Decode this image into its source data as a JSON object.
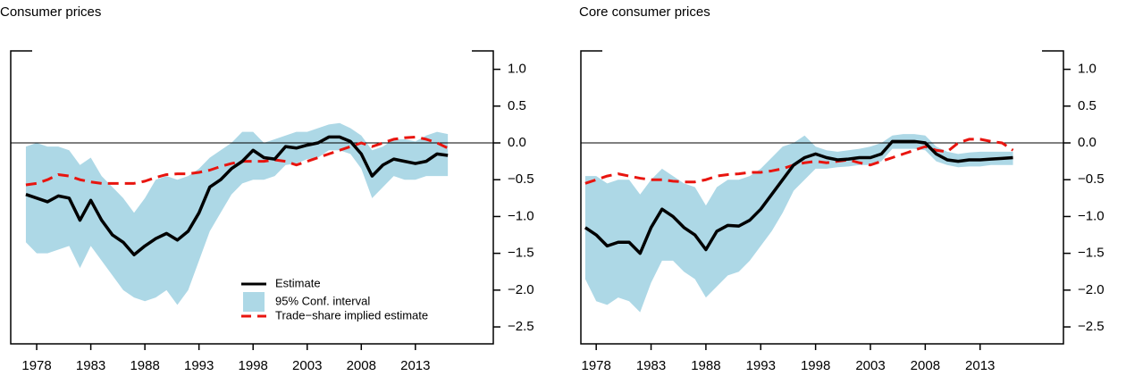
{
  "chart_data": [
    {
      "type": "line",
      "title": "Consumer prices",
      "legend": "bottom-right",
      "hline": 0,
      "x": [
        1977,
        1978,
        1979,
        1980,
        1981,
        1982,
        1983,
        1984,
        1985,
        1986,
        1987,
        1988,
        1989,
        1990,
        1991,
        1992,
        1993,
        1994,
        1995,
        1996,
        1997,
        1998,
        1999,
        2000,
        2001,
        2002,
        2003,
        2004,
        2005,
        2006,
        2007,
        2008,
        2009,
        2010,
        2011,
        2012,
        2013,
        2014,
        2015,
        2016
      ],
      "xlim": [
        1975.6,
        2020.2
      ],
      "xticks": [
        1978,
        1983,
        1988,
        1993,
        1998,
        2003,
        2008,
        2013
      ],
      "ylim": [
        -2.73,
        1.25
      ],
      "yticks": [
        {
          "value": 1,
          "label": "1.0"
        },
        {
          "value": 0.5,
          "label": "0.5"
        },
        {
          "value": 0,
          "label": "0.0"
        },
        {
          "value": -0.5,
          "label": "−0.5"
        },
        {
          "value": -1,
          "label": "−1.0"
        },
        {
          "value": -1.5,
          "label": "−1.5"
        },
        {
          "value": -2,
          "label": "−2.0"
        },
        {
          "value": -2.5,
          "label": "−2.5"
        }
      ],
      "band": {
        "name": "95% Conf. interval",
        "color": "#add8e6",
        "lower": [
          -1.35,
          -1.5,
          -1.5,
          -1.45,
          -1.4,
          -1.7,
          -1.4,
          -1.6,
          -1.8,
          -2.0,
          -2.1,
          -2.15,
          -2.1,
          -2.0,
          -2.2,
          -2.0,
          -1.6,
          -1.2,
          -0.95,
          -0.7,
          -0.55,
          -0.5,
          -0.5,
          -0.45,
          -0.3,
          -0.28,
          -0.22,
          -0.2,
          -0.1,
          -0.1,
          -0.15,
          -0.35,
          -0.75,
          -0.6,
          -0.45,
          -0.5,
          -0.5,
          -0.45,
          -0.45,
          -0.45
        ],
        "upper": [
          -0.05,
          0.0,
          -0.05,
          -0.05,
          -0.1,
          -0.3,
          -0.2,
          -0.45,
          -0.6,
          -0.75,
          -0.95,
          -0.75,
          -0.5,
          -0.45,
          -0.5,
          -0.45,
          -0.35,
          -0.2,
          -0.1,
          0.0,
          0.15,
          0.15,
          0.0,
          0.05,
          0.1,
          0.15,
          0.15,
          0.2,
          0.25,
          0.27,
          0.2,
          0.1,
          -0.1,
          -0.05,
          0.05,
          0.05,
          0.02,
          0.1,
          0.15,
          0.12
        ]
      },
      "series": [
        {
          "name": "Estimate",
          "color": "#000000",
          "style": "solid",
          "values": [
            -0.7,
            -0.75,
            -0.8,
            -0.72,
            -0.75,
            -1.05,
            -0.78,
            -1.05,
            -1.25,
            -1.35,
            -1.52,
            -1.4,
            -1.3,
            -1.23,
            -1.32,
            -1.2,
            -0.95,
            -0.6,
            -0.5,
            -0.35,
            -0.25,
            -0.1,
            -0.2,
            -0.22,
            -0.05,
            -0.07,
            -0.03,
            0.0,
            0.08,
            0.08,
            0.02,
            -0.15,
            -0.45,
            -0.3,
            -0.22,
            -0.25,
            -0.28,
            -0.25,
            -0.15,
            -0.17
          ]
        },
        {
          "name": "Trade−share implied estimate",
          "color": "#e8150f",
          "style": "dashed",
          "values": [
            -0.57,
            -0.55,
            -0.5,
            -0.43,
            -0.45,
            -0.5,
            -0.53,
            -0.55,
            -0.55,
            -0.55,
            -0.55,
            -0.52,
            -0.47,
            -0.43,
            -0.42,
            -0.42,
            -0.4,
            -0.37,
            -0.32,
            -0.28,
            -0.25,
            -0.25,
            -0.25,
            -0.23,
            -0.25,
            -0.3,
            -0.25,
            -0.2,
            -0.15,
            -0.1,
            -0.05,
            0.0,
            -0.05,
            0.0,
            0.05,
            0.07,
            0.08,
            0.05,
            0.0,
            -0.07
          ]
        }
      ]
    },
    {
      "type": "line",
      "title": "Core consumer prices",
      "legend": false,
      "hline": 0,
      "x": [
        1977,
        1978,
        1979,
        1980,
        1981,
        1982,
        1983,
        1984,
        1985,
        1986,
        1987,
        1988,
        1989,
        1990,
        1991,
        1992,
        1993,
        1994,
        1995,
        1996,
        1997,
        1998,
        1999,
        2000,
        2001,
        2002,
        2003,
        2004,
        2005,
        2006,
        2007,
        2008,
        2009,
        2010,
        2011,
        2012,
        2013,
        2014,
        2015,
        2016
      ],
      "xlim": [
        1976.6,
        2020.6
      ],
      "xticks": [
        1978,
        1983,
        1988,
        1993,
        1998,
        2003,
        2008,
        2013
      ],
      "ylim": [
        -2.73,
        1.25
      ],
      "yticks": [
        {
          "value": 1,
          "label": "1.0"
        },
        {
          "value": 0.5,
          "label": "0.5"
        },
        {
          "value": 0,
          "label": "0.0"
        },
        {
          "value": -0.5,
          "label": "−0.5"
        },
        {
          "value": -1,
          "label": "−1.0"
        },
        {
          "value": -1.5,
          "label": "−1.5"
        },
        {
          "value": -2,
          "label": "−2.0"
        },
        {
          "value": -2.5,
          "label": "−2.5"
        }
      ],
      "band": {
        "color": "#add8e6",
        "lower": [
          -1.85,
          -2.15,
          -2.2,
          -2.1,
          -2.15,
          -2.3,
          -1.9,
          -1.6,
          -1.6,
          -1.75,
          -1.85,
          -2.1,
          -1.95,
          -1.8,
          -1.75,
          -1.6,
          -1.4,
          -1.2,
          -0.95,
          -0.65,
          -0.5,
          -0.35,
          -0.35,
          -0.33,
          -0.32,
          -0.3,
          -0.3,
          -0.25,
          -0.08,
          -0.08,
          -0.08,
          -0.1,
          -0.25,
          -0.3,
          -0.33,
          -0.32,
          -0.32,
          -0.3,
          -0.3,
          -0.3
        ],
        "upper": [
          -0.45,
          -0.45,
          -0.55,
          -0.5,
          -0.5,
          -0.7,
          -0.5,
          -0.35,
          -0.45,
          -0.55,
          -0.6,
          -0.85,
          -0.6,
          -0.5,
          -0.5,
          -0.45,
          -0.35,
          -0.2,
          -0.05,
          0.0,
          0.1,
          -0.05,
          -0.1,
          -0.12,
          -0.1,
          -0.08,
          -0.05,
          0.0,
          0.1,
          0.12,
          0.12,
          0.1,
          -0.05,
          -0.12,
          -0.15,
          -0.13,
          -0.12,
          -0.12,
          -0.12,
          -0.12
        ]
      },
      "series": [
        {
          "color": "#000000",
          "style": "solid",
          "values": [
            -1.15,
            -1.25,
            -1.4,
            -1.35,
            -1.35,
            -1.5,
            -1.15,
            -0.9,
            -1.0,
            -1.15,
            -1.25,
            -1.45,
            -1.2,
            -1.12,
            -1.13,
            -1.05,
            -0.9,
            -0.7,
            -0.5,
            -0.3,
            -0.2,
            -0.15,
            -0.2,
            -0.23,
            -0.22,
            -0.2,
            -0.2,
            -0.15,
            0.02,
            0.02,
            0.02,
            0.0,
            -0.15,
            -0.23,
            -0.25,
            -0.23,
            -0.23,
            -0.22,
            -0.21,
            -0.2
          ]
        },
        {
          "color": "#e8150f",
          "style": "dashed",
          "values": [
            -0.55,
            -0.5,
            -0.45,
            -0.42,
            -0.45,
            -0.48,
            -0.5,
            -0.5,
            -0.52,
            -0.53,
            -0.53,
            -0.5,
            -0.45,
            -0.43,
            -0.42,
            -0.4,
            -0.4,
            -0.38,
            -0.35,
            -0.3,
            -0.27,
            -0.25,
            -0.27,
            -0.25,
            -0.23,
            -0.27,
            -0.3,
            -0.25,
            -0.2,
            -0.15,
            -0.1,
            -0.05,
            -0.1,
            -0.12,
            0.0,
            0.05,
            0.05,
            0.02,
            0.0,
            -0.1
          ]
        }
      ]
    }
  ]
}
